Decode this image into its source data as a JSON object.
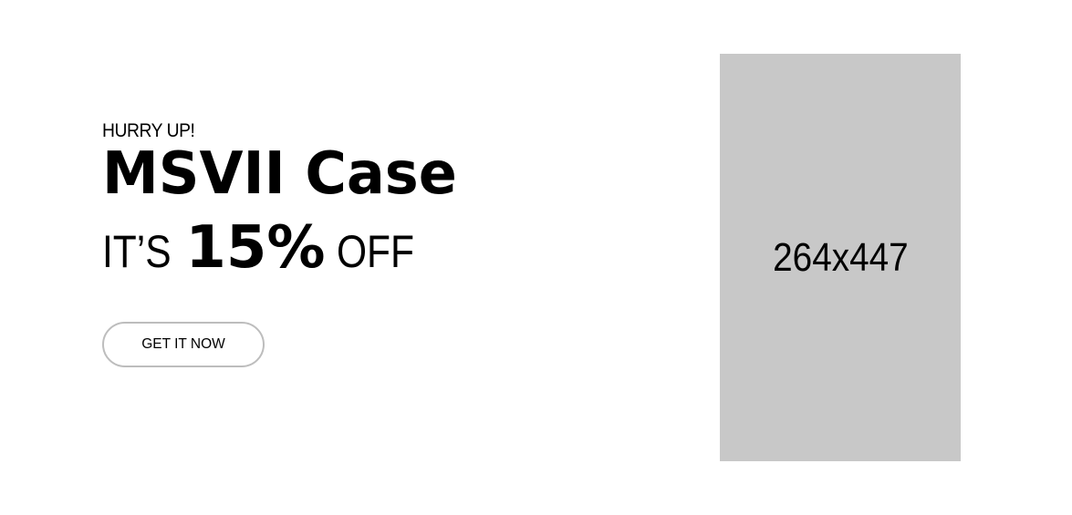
{
  "promo": {
    "eyebrow": "HURRY UP!",
    "headline": "MSVII Case",
    "offer_prefix": "IT’S",
    "offer_value": "15%",
    "offer_suffix": "OFF",
    "cta_label": "GET IT NOW"
  },
  "image": {
    "placeholder_label": "264x447",
    "background_color": "#c8c8c8"
  },
  "colors": {
    "background": "#ffffff",
    "text": "#000000",
    "button_border": "#bdbdbd"
  }
}
